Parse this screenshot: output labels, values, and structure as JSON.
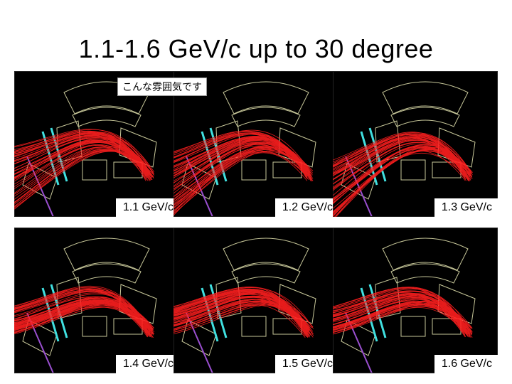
{
  "slide": {
    "title": "1.1-1.6 GeV/c up to 30 degree",
    "note": "こんな雰囲気です"
  },
  "panels": [
    {
      "label": "1.1 GeV/c"
    },
    {
      "label": "1.2 GeV/c"
    },
    {
      "label": "1.3 GeV/c"
    },
    {
      "label": "1.4 GeV/c"
    },
    {
      "label": "1.5 GeV/c"
    },
    {
      "label": "1.6 GeV/c"
    }
  ],
  "colors": {
    "track": "#ff2020",
    "detector_outline": "#c8c89a",
    "hodoscope": "#40e0e0",
    "chamber": "#9a4fd0",
    "frame": "#d0d0d0"
  }
}
